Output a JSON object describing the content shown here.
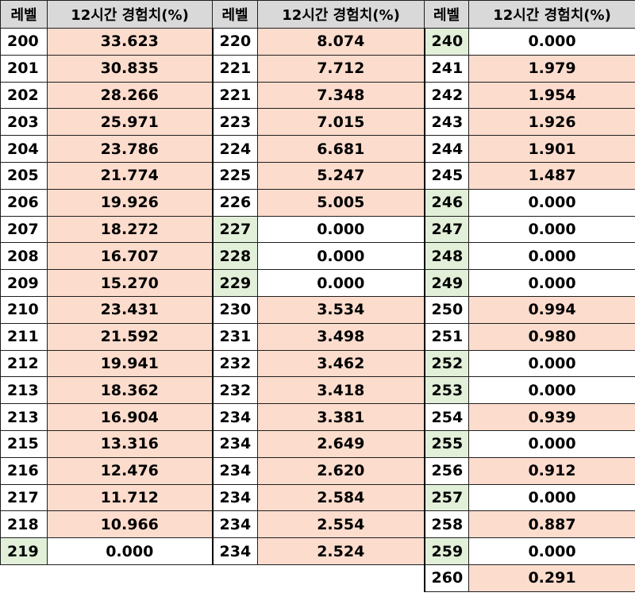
{
  "headers": {
    "level": "레벨",
    "exp": "12시간 경험치(%)"
  },
  "colors": {
    "header_bg": "#d9d9d9",
    "pink": "#fcdccd",
    "green": "#e2efd9",
    "white": "#ffffff"
  },
  "columns": [
    {
      "rows": [
        {
          "level": "200",
          "exp": "33.623",
          "level_bg": "white",
          "exp_bg": "pink"
        },
        {
          "level": "201",
          "exp": "30.835",
          "level_bg": "white",
          "exp_bg": "pink"
        },
        {
          "level": "202",
          "exp": "28.266",
          "level_bg": "white",
          "exp_bg": "pink"
        },
        {
          "level": "203",
          "exp": "25.971",
          "level_bg": "white",
          "exp_bg": "pink"
        },
        {
          "level": "204",
          "exp": "23.786",
          "level_bg": "white",
          "exp_bg": "pink"
        },
        {
          "level": "205",
          "exp": "21.774",
          "level_bg": "white",
          "exp_bg": "pink"
        },
        {
          "level": "206",
          "exp": "19.926",
          "level_bg": "white",
          "exp_bg": "pink"
        },
        {
          "level": "207",
          "exp": "18.272",
          "level_bg": "white",
          "exp_bg": "pink"
        },
        {
          "level": "208",
          "exp": "16.707",
          "level_bg": "white",
          "exp_bg": "pink"
        },
        {
          "level": "209",
          "exp": "15.270",
          "level_bg": "white",
          "exp_bg": "pink"
        },
        {
          "level": "210",
          "exp": "23.431",
          "level_bg": "white",
          "exp_bg": "pink"
        },
        {
          "level": "211",
          "exp": "21.592",
          "level_bg": "white",
          "exp_bg": "pink"
        },
        {
          "level": "212",
          "exp": "19.941",
          "level_bg": "white",
          "exp_bg": "pink"
        },
        {
          "level": "213",
          "exp": "18.362",
          "level_bg": "white",
          "exp_bg": "pink"
        },
        {
          "level": "213",
          "exp": "16.904",
          "level_bg": "white",
          "exp_bg": "pink"
        },
        {
          "level": "215",
          "exp": "13.316",
          "level_bg": "white",
          "exp_bg": "pink"
        },
        {
          "level": "216",
          "exp": "12.476",
          "level_bg": "white",
          "exp_bg": "pink"
        },
        {
          "level": "217",
          "exp": "11.712",
          "level_bg": "white",
          "exp_bg": "pink"
        },
        {
          "level": "218",
          "exp": "10.966",
          "level_bg": "white",
          "exp_bg": "pink"
        },
        {
          "level": "219",
          "exp": "0.000",
          "level_bg": "green",
          "exp_bg": "white"
        }
      ]
    },
    {
      "rows": [
        {
          "level": "220",
          "exp": "8.074",
          "level_bg": "white",
          "exp_bg": "pink"
        },
        {
          "level": "221",
          "exp": "7.712",
          "level_bg": "white",
          "exp_bg": "pink"
        },
        {
          "level": "221",
          "exp": "7.348",
          "level_bg": "white",
          "exp_bg": "pink"
        },
        {
          "level": "223",
          "exp": "7.015",
          "level_bg": "white",
          "exp_bg": "pink"
        },
        {
          "level": "224",
          "exp": "6.681",
          "level_bg": "white",
          "exp_bg": "pink"
        },
        {
          "level": "225",
          "exp": "5.247",
          "level_bg": "white",
          "exp_bg": "pink"
        },
        {
          "level": "226",
          "exp": "5.005",
          "level_bg": "white",
          "exp_bg": "pink"
        },
        {
          "level": "227",
          "exp": "0.000",
          "level_bg": "green",
          "exp_bg": "white"
        },
        {
          "level": "228",
          "exp": "0.000",
          "level_bg": "green",
          "exp_bg": "white"
        },
        {
          "level": "229",
          "exp": "0.000",
          "level_bg": "green",
          "exp_bg": "white"
        },
        {
          "level": "230",
          "exp": "3.534",
          "level_bg": "white",
          "exp_bg": "pink"
        },
        {
          "level": "231",
          "exp": "3.498",
          "level_bg": "white",
          "exp_bg": "pink"
        },
        {
          "level": "232",
          "exp": "3.462",
          "level_bg": "white",
          "exp_bg": "pink"
        },
        {
          "level": "232",
          "exp": "3.418",
          "level_bg": "white",
          "exp_bg": "pink"
        },
        {
          "level": "234",
          "exp": "3.381",
          "level_bg": "white",
          "exp_bg": "pink"
        },
        {
          "level": "234",
          "exp": "2.649",
          "level_bg": "white",
          "exp_bg": "pink"
        },
        {
          "level": "234",
          "exp": "2.620",
          "level_bg": "white",
          "exp_bg": "pink"
        },
        {
          "level": "234",
          "exp": "2.584",
          "level_bg": "white",
          "exp_bg": "pink"
        },
        {
          "level": "234",
          "exp": "2.554",
          "level_bg": "white",
          "exp_bg": "pink"
        },
        {
          "level": "234",
          "exp": "2.524",
          "level_bg": "white",
          "exp_bg": "pink"
        }
      ]
    },
    {
      "rows": [
        {
          "level": "240",
          "exp": "0.000",
          "level_bg": "green",
          "exp_bg": "white"
        },
        {
          "level": "241",
          "exp": "1.979",
          "level_bg": "white",
          "exp_bg": "pink"
        },
        {
          "level": "242",
          "exp": "1.954",
          "level_bg": "white",
          "exp_bg": "pink"
        },
        {
          "level": "243",
          "exp": "1.926",
          "level_bg": "white",
          "exp_bg": "pink"
        },
        {
          "level": "244",
          "exp": "1.901",
          "level_bg": "white",
          "exp_bg": "pink"
        },
        {
          "level": "245",
          "exp": "1.487",
          "level_bg": "white",
          "exp_bg": "pink"
        },
        {
          "level": "246",
          "exp": "0.000",
          "level_bg": "green",
          "exp_bg": "white"
        },
        {
          "level": "247",
          "exp": "0.000",
          "level_bg": "green",
          "exp_bg": "white"
        },
        {
          "level": "248",
          "exp": "0.000",
          "level_bg": "green",
          "exp_bg": "white"
        },
        {
          "level": "249",
          "exp": "0.000",
          "level_bg": "green",
          "exp_bg": "white"
        },
        {
          "level": "250",
          "exp": "0.994",
          "level_bg": "white",
          "exp_bg": "pink"
        },
        {
          "level": "251",
          "exp": "0.980",
          "level_bg": "white",
          "exp_bg": "pink"
        },
        {
          "level": "252",
          "exp": "0.000",
          "level_bg": "green",
          "exp_bg": "white"
        },
        {
          "level": "253",
          "exp": "0.000",
          "level_bg": "green",
          "exp_bg": "white"
        },
        {
          "level": "254",
          "exp": "0.939",
          "level_bg": "white",
          "exp_bg": "pink"
        },
        {
          "level": "255",
          "exp": "0.000",
          "level_bg": "green",
          "exp_bg": "white"
        },
        {
          "level": "256",
          "exp": "0.912",
          "level_bg": "white",
          "exp_bg": "pink"
        },
        {
          "level": "257",
          "exp": "0.000",
          "level_bg": "green",
          "exp_bg": "white"
        },
        {
          "level": "258",
          "exp": "0.887",
          "level_bg": "white",
          "exp_bg": "pink"
        },
        {
          "level": "259",
          "exp": "0.000",
          "level_bg": "green",
          "exp_bg": "white"
        },
        {
          "level": "260",
          "exp": "0.291",
          "level_bg": "white",
          "exp_bg": "pink"
        }
      ]
    }
  ]
}
